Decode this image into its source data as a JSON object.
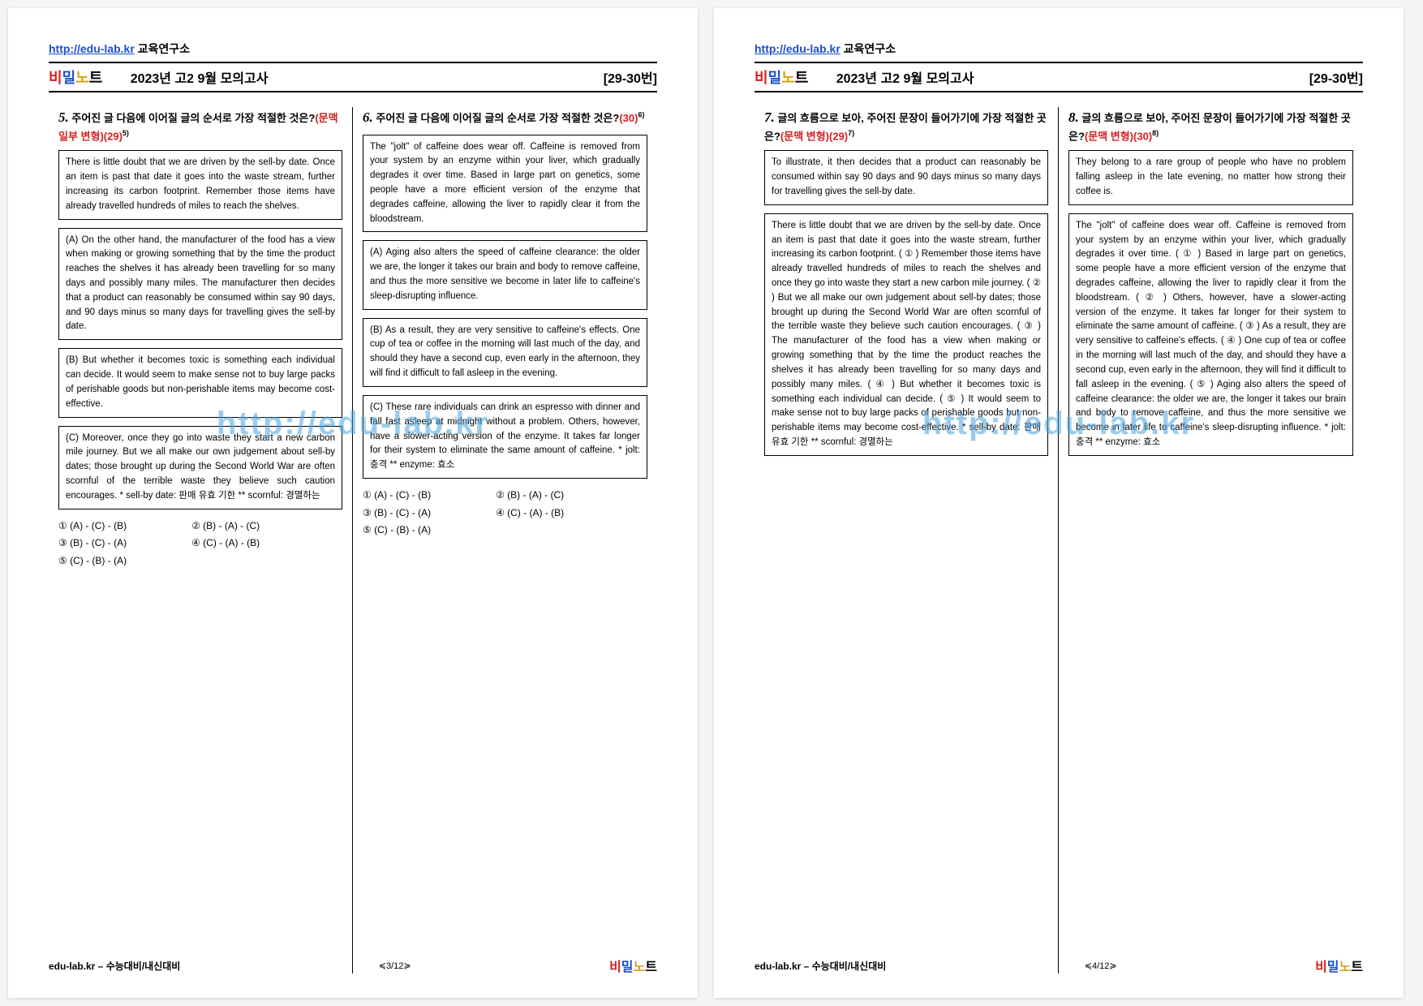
{
  "site": {
    "url": "http://edu-lab.kr",
    "suffix": "교육연구소"
  },
  "brand": {
    "p1": "비",
    "p2": "밀",
    "p3": "노",
    "p4": "트"
  },
  "examTitle": "2023년 고2 9월 모의고사",
  "range": "[29-30번]",
  "watermark": "http://edu-lab.kr",
  "footer": {
    "left": "edu-lab.kr – 수능대비/내신대비"
  },
  "pageNums": {
    "p3": "≼3/12≽",
    "p4": "≼4/12≽"
  },
  "q5": {
    "num": "5.",
    "title": "주어진 글 다음에 이어질 글의 순서로 가장 적절한 것은?",
    "note": "(문맥 일부 변형)(29)",
    "sup": "5)",
    "boxes": [
      "There is little doubt that we are driven by the sell-by date. Once an item is past that date it goes into the waste stream, further increasing its carbon footprint. Remember those items have already travelled hundreds of miles to reach the shelves.",
      "(A) On the other hand, the manufacturer of the food has a view when making or growing something that by the time the product reaches the shelves it has already been travelling for so many days and possibly many miles. The manufacturer then decides that a product can reasonably be consumed within say 90 days, and 90 days minus so many days for travelling gives the sell-by date.",
      "(B) But whether it becomes toxic is something each individual can decide. It would seem to make sense not to buy large packs of perishable goods but non-perishable items may become cost-effective.",
      "(C) Moreover, once they go into waste they start a new carbon mile journey. But we all make our own judgement about sell-by dates; those brought up during the Second World War are often scornful of the terrible waste they believe such caution encourages. * sell-by date: 판매 유효 기한 ** scornful: 경멸하는"
    ],
    "answers": [
      [
        "① (A) - (C) - (B)",
        "② (B) - (A) - (C)"
      ],
      [
        "③ (B) - (C) - (A)",
        "④ (C) - (A) - (B)"
      ],
      [
        "⑤ (C) - (B) - (A)",
        ""
      ]
    ]
  },
  "q6": {
    "num": "6.",
    "title": "주어진 글 다음에 이어질 글의 순서로 가장 적절한 것은?",
    "note": "(30)",
    "sup": "6)",
    "boxes": [
      "The \"jolt\" of caffeine does wear off. Caffeine is removed from your system by an enzyme within your liver, which gradually degrades it over time. Based in large part on genetics, some people have a more efficient version of the enzyme that degrades caffeine, allowing the liver to rapidly clear it from the bloodstream.",
      "(A) Aging also alters the speed of caffeine clearance: the older we are, the longer it takes our brain and body to remove caffeine, and thus the more sensitive we become in later life to caffeine's sleep-disrupting influence.",
      "(B) As a result, they are very sensitive to caffeine's effects. One cup of tea or coffee in the morning will last much of the day, and should they have a second cup, even early in the afternoon, they will find it difficult to fall asleep in the evening.",
      "(C) These rare individuals can drink an espresso with dinner and fall fast asleep at midnight without a problem. Others, however, have a slower-acting version of the enzyme. It takes far longer for their system to eliminate the same amount of caffeine. * jolt: 충격 ** enzyme: 효소"
    ],
    "answers": [
      [
        "① (A) - (C) - (B)",
        "② (B) - (A) - (C)"
      ],
      [
        "③ (B) - (C) - (A)",
        "④ (C) - (A) - (B)"
      ],
      [
        "⑤ (C) - (B) - (A)",
        ""
      ]
    ]
  },
  "q7": {
    "num": "7.",
    "title": "글의 흐름으로 보아, 주어진 문장이 들어가기에 가장 적절한 곳은?",
    "note": "(문맥 변형)(29)",
    "sup": "7)",
    "boxes": [
      "To illustrate, it then decides that a product can reasonably be consumed within say 90 days and 90 days minus so many days for travelling gives the sell-by date.",
      "There is little doubt that we are driven by the sell-by date. Once an item is past that date it goes into the waste stream, further increasing its carbon footprint. ( ① ) Remember those items have already travelled hundreds of miles to reach the shelves and once they go into waste they start a new carbon mile journey. ( ② ) But we all make our own judgement about sell-by dates; those brought up during the Second World War are often scornful of the terrible waste they believe such caution encourages. ( ③ ) The manufacturer of the food has a view when making or growing something that by the time the product reaches the shelves it has already been travelling for so many days and possibly many miles. ( ④ ) But whether it becomes toxic is something each individual can decide. ( ⑤ ) It would seem to make sense not to buy large packs of perishable goods but non-perishable items may become cost-effective. * sell-by date: 판매 유효 기한 ** scornful: 경멸하는"
    ]
  },
  "q8": {
    "num": "8.",
    "title": "글의 흐름으로 보아, 주어진 문장이 들어가기에 가장 적절한 곳은?",
    "note": "(문맥 변형)(30)",
    "sup": "8)",
    "boxes": [
      "They belong to a rare group of people who have no problem falling asleep in the late evening, no matter how strong their coffee is.",
      "The \"jolt\" of caffeine does wear off. Caffeine is removed from your system by an enzyme within your liver, which gradually degrades it over time. ( ① ) Based in large part on genetics, some people have a more efficient version of the enzyme that degrades caffeine, allowing the liver to rapidly clear it from the bloodstream. ( ② ) Others, however, have a slower-acting version of the enzyme. It takes far longer for their system to eliminate the same amount of caffeine. ( ③ ) As a result, they are very sensitive to caffeine's effects. ( ④ ) One cup of tea or coffee in the morning will last much of the day, and should they have a second cup, even early in the afternoon, they will find it difficult to fall asleep in the evening. ( ⑤ ) Aging also alters the speed of caffeine clearance: the older we are, the longer it takes our brain and body to remove caffeine, and thus the more sensitive we become in later life to caffeine's sleep-disrupting influence. * jolt: 충격 ** enzyme: 효소"
    ]
  }
}
